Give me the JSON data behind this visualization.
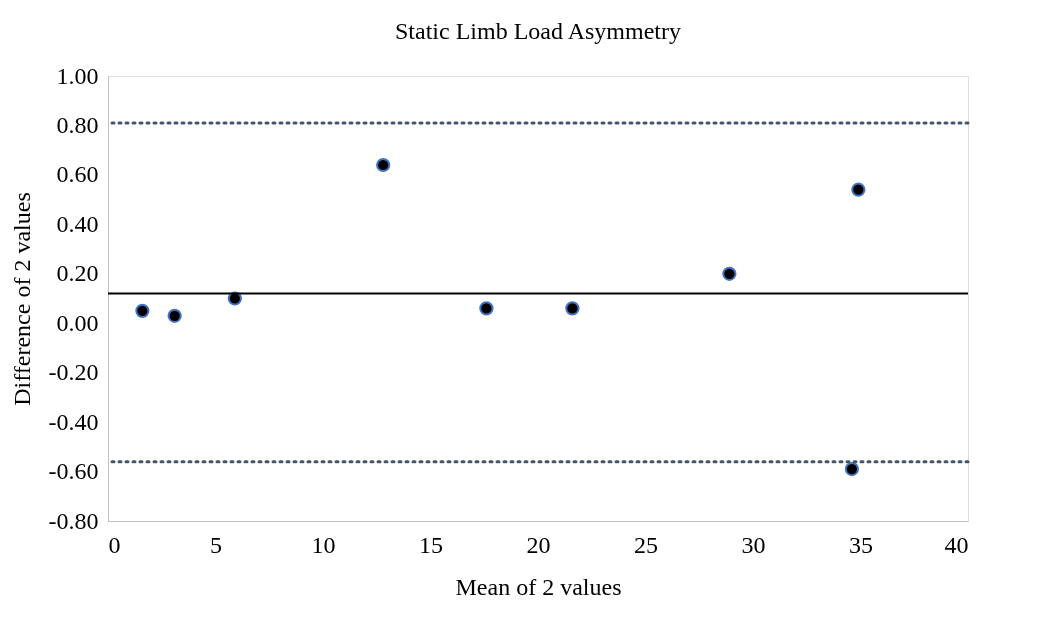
{
  "chart_data": {
    "type": "scatter",
    "title": "Static Limb Load Asymmetry",
    "xlabel": "Mean of 2 values",
    "ylabel": "Difference of 2 values",
    "x": [
      1.6,
      3.1,
      5.9,
      12.8,
      17.6,
      21.6,
      28.9,
      34.9,
      34.6
    ],
    "series": [
      {
        "color": "#000000",
        "values": [
          0.05,
          0.03,
          0.1,
          0.64,
          0.06,
          0.06,
          0.2,
          0.54,
          -0.59
        ]
      }
    ],
    "marker": "circle",
    "grid": false,
    "xlim": [
      0,
      40
    ],
    "xticks": [
      0,
      5,
      10,
      15,
      20,
      25,
      30,
      35,
      40
    ],
    "ylim": [
      -0.8,
      1.0
    ],
    "yticks": [
      {
        "value": -0.8,
        "label": "-0.80"
      },
      {
        "value": -0.6,
        "label": "-0.60"
      },
      {
        "value": -0.4,
        "label": "-0.40"
      },
      {
        "value": -0.2,
        "label": "-0.20"
      },
      {
        "value": 0,
        "label": "0.00"
      },
      {
        "value": 0.2,
        "label": "0.20"
      },
      {
        "value": 0.4,
        "label": "0.40"
      },
      {
        "value": 0.6,
        "label": "0.60"
      },
      {
        "value": 0.8,
        "label": "0.80"
      },
      {
        "value": 1.0,
        "label": "1.00"
      }
    ],
    "ref_lines": [
      {
        "axis": "y",
        "value": 0.81,
        "color": "#44546a",
        "line_style": "dotted"
      },
      {
        "axis": "y",
        "value": 0.12,
        "color": "#000000",
        "line_style": "solid"
      },
      {
        "axis": "y",
        "value": -0.56,
        "color": "#44546a",
        "line_style": "dotted"
      }
    ]
  }
}
